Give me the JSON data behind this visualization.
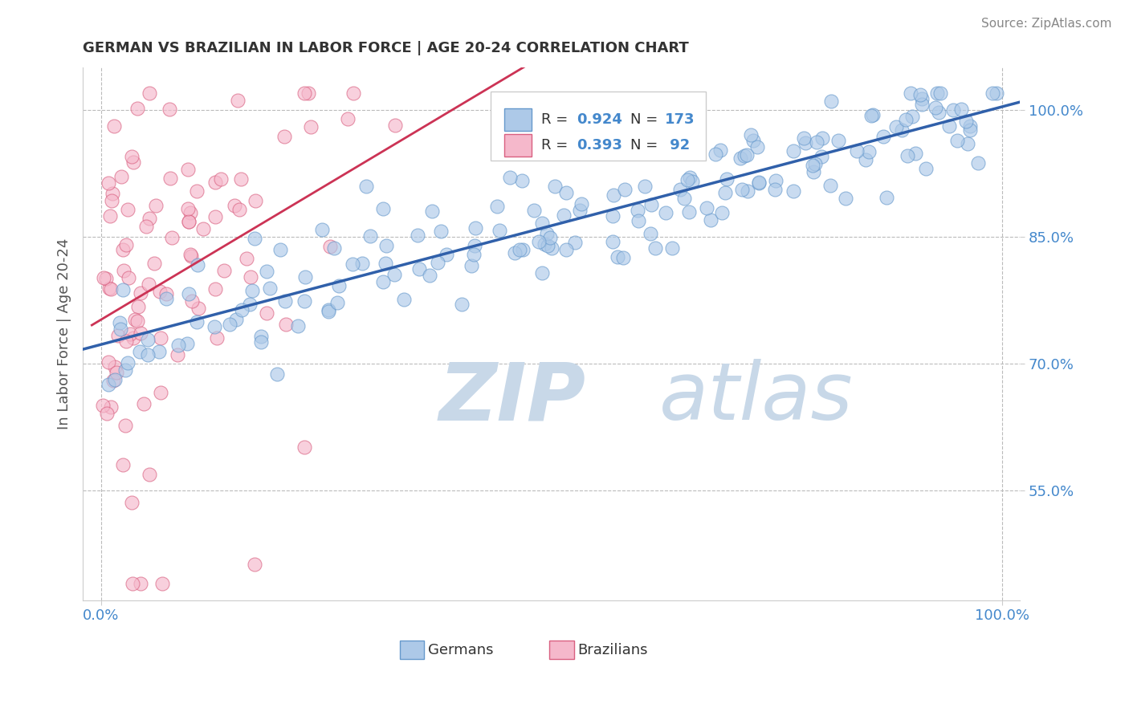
{
  "title": "GERMAN VS BRAZILIAN IN LABOR FORCE | AGE 20-24 CORRELATION CHART",
  "source": "Source: ZipAtlas.com",
  "ylabel": "In Labor Force | Age 20-24",
  "xlim": [
    -0.02,
    1.02
  ],
  "ylim": [
    0.42,
    1.05
  ],
  "x_ticks": [
    0.0,
    1.0
  ],
  "x_tick_labels": [
    "0.0%",
    "100.0%"
  ],
  "y_ticks": [
    0.55,
    0.7,
    0.85,
    1.0
  ],
  "y_tick_labels": [
    "55.0%",
    "70.0%",
    "85.0%",
    "100.0%"
  ],
  "german_color": "#adc9e8",
  "german_edge": "#6699cc",
  "brazilian_color": "#f5b8cb",
  "brazilian_edge": "#d96080",
  "german_line_color": "#3060aa",
  "brazilian_line_color": "#cc3355",
  "watermark_zip_color": "#c8d8e8",
  "watermark_atlas_color": "#c8d8e8",
  "background": "#ffffff",
  "grid_color": "#bbbbbb",
  "title_color": "#333333",
  "axis_label_color": "#555555",
  "tick_color": "#4488cc",
  "source_color": "#888888",
  "legend_box_color": "#eeeeee",
  "legend_text_color": "#333333",
  "legend_value_color": "#4488cc"
}
